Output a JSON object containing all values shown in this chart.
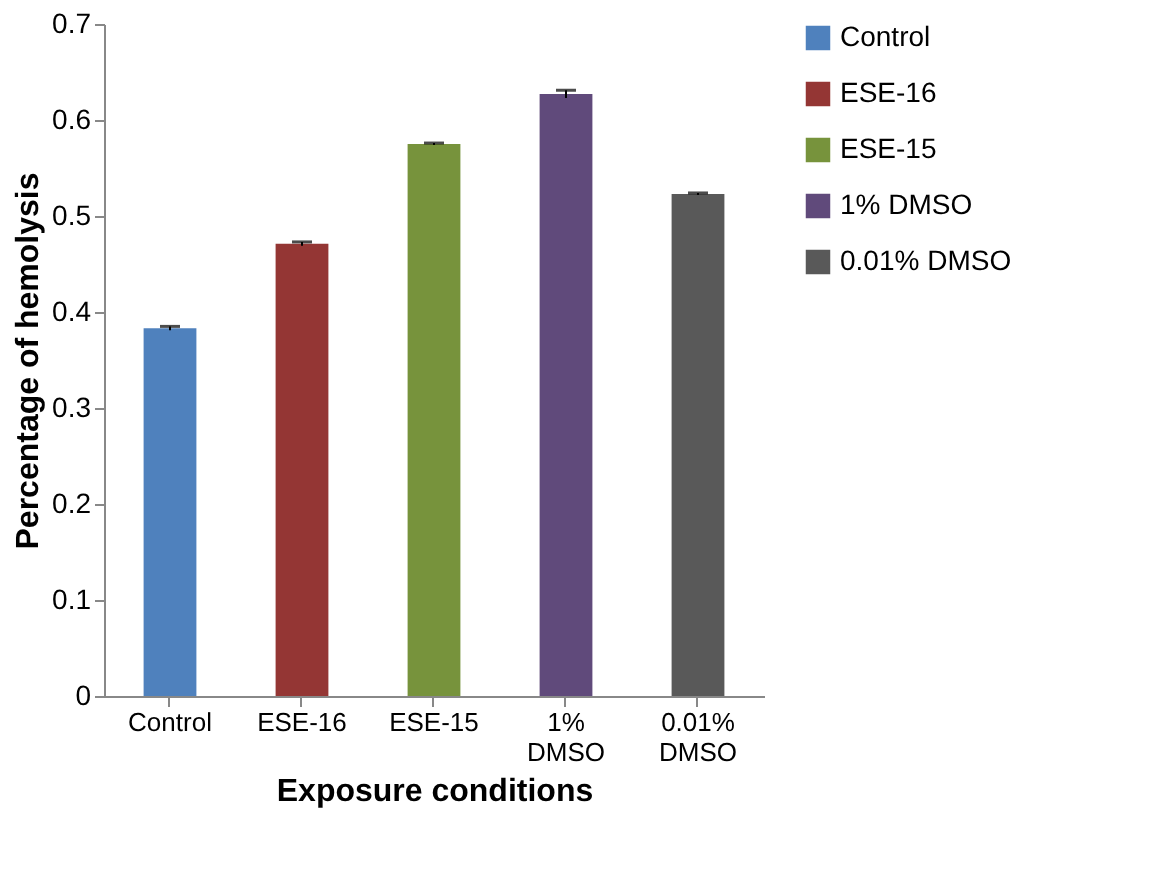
{
  "chart_data": {
    "type": "bar",
    "xlabel": "Exposure conditions",
    "ylabel": "Percentage of hemolysis",
    "categories": [
      "Control",
      "ESE-16",
      "ESE-15",
      "1% DMSO",
      "0.01% DMSO"
    ],
    "stacked": true,
    "series": [
      {
        "name": "Control",
        "color": "#4f81bd",
        "values": [
          0.383,
          null,
          null,
          null,
          null
        ],
        "errors": [
          0.002,
          null,
          null,
          null,
          null
        ]
      },
      {
        "name": "ESE-16",
        "color": "#943634",
        "values": [
          null,
          0.471,
          null,
          null,
          null
        ],
        "errors": [
          null,
          0.002,
          null,
          null,
          null
        ]
      },
      {
        "name": "ESE-15",
        "color": "#77933c",
        "values": [
          null,
          null,
          0.575,
          null,
          null
        ],
        "errors": [
          null,
          null,
          0.001,
          null,
          null
        ]
      },
      {
        "name": "1% DMSO",
        "color": "#604a7b",
        "values": [
          null,
          null,
          null,
          0.627,
          null
        ],
        "errors": [
          null,
          null,
          null,
          0.004,
          null
        ]
      },
      {
        "name": "0.01% DMSO",
        "color": "#595959",
        "values": [
          null,
          null,
          null,
          null,
          0.523
        ],
        "errors": [
          null,
          null,
          null,
          null,
          0.001
        ]
      }
    ],
    "ylim": [
      0,
      0.7
    ],
    "yticks": [
      0,
      0.1,
      0.2,
      0.3,
      0.4,
      0.5,
      0.6,
      0.7
    ],
    "grid": false,
    "legend": "right"
  }
}
